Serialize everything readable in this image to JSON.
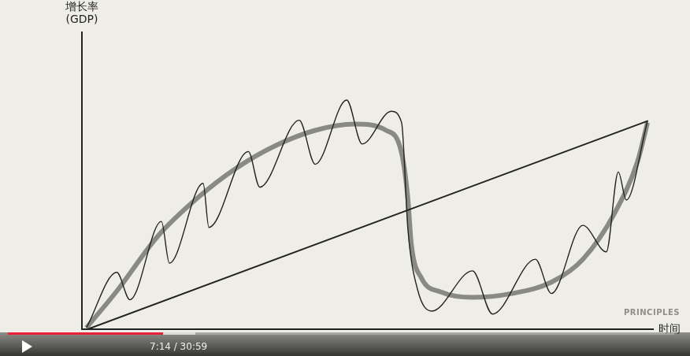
{
  "chart_data": {
    "type": "line",
    "y_label": "增长率\n(GDP)",
    "x_label": "时间",
    "xlim": [
      0,
      100
    ],
    "ylim": [
      0,
      100
    ],
    "tick_labels": false,
    "grid": false,
    "marker": "none",
    "series": [
      {
        "color": "#222222",
        "line_style": "solid",
        "x": [
          1,
          99
        ],
        "values": [
          0,
          70
        ]
      },
      {
        "color": "#8a8a85",
        "line_style": "solid",
        "x": [
          0.8,
          6.3,
          13.2,
          20.1,
          27.0,
          33.9,
          40.8,
          47.7,
          53.2,
          55.9,
          57.0,
          57.6,
          59.4,
          62.8,
          68.3,
          75.2,
          82.1,
          87.6,
          93.1,
          97.2,
          98.9
        ],
        "values": [
          0.5,
          13.3,
          31.1,
          43.9,
          54.1,
          61.7,
          66.8,
          68.9,
          66.8,
          59.2,
          43.9,
          28.6,
          17.1,
          12.5,
          10.7,
          12.0,
          15.8,
          23.5,
          38.8,
          56.6,
          69.4
        ]
      },
      {
        "color": "#222222",
        "line_style": "solid",
        "x": [
          0.8,
          6.1,
          8.4,
          13.9,
          15.3,
          21.2,
          22.2,
          29.1,
          31.1,
          38.0,
          40.8,
          46.3,
          49.0,
          54.1,
          55.9,
          57.0,
          58.7,
          61.2,
          68.3,
          71.8,
          79.3,
          82.1,
          87.6,
          91.7,
          93.8,
          95.2,
          98.9
        ],
        "values": [
          0.5,
          19.1,
          9.9,
          36.2,
          22.2,
          49.0,
          34.2,
          59.7,
          47.7,
          70.2,
          55.4,
          77.0,
          62.2,
          73.2,
          69.4,
          33.7,
          13.3,
          6.1,
          19.6,
          5.1,
          23.5,
          12.0,
          34.9,
          26.0,
          52.8,
          43.4,
          69.9
        ]
      }
    ]
  },
  "watermark": "PRINCIPLES",
  "video_player": {
    "time": "7:14 / 30:59"
  }
}
